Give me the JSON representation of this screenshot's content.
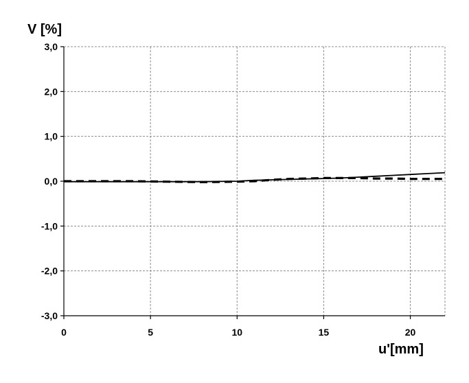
{
  "chart_data": {
    "type": "line",
    "title": "",
    "ylabel": "V [%]",
    "xlabel": "u'[mm]",
    "xlim": [
      0,
      22
    ],
    "ylim": [
      -3.0,
      3.0
    ],
    "x_ticks": [
      0,
      5,
      10,
      15,
      20
    ],
    "x_tick_labels": [
      "0",
      "5",
      "10",
      "15",
      "20"
    ],
    "y_ticks": [
      3.0,
      2.0,
      1.0,
      0.0,
      -1.0,
      -2.0,
      -3.0
    ],
    "y_tick_labels": [
      "3,0",
      "2,0",
      "1,0",
      "0,0",
      "-1,0",
      "-2,0",
      "-3,0"
    ],
    "grid": true,
    "series": [
      {
        "style": "solid",
        "color": "#000000",
        "x": [
          0,
          2,
          4,
          6,
          8,
          10,
          11,
          12,
          13,
          14,
          15,
          16,
          17,
          18,
          19,
          20,
          21,
          22
        ],
        "y": [
          -0.01,
          -0.01,
          -0.01,
          -0.01,
          -0.01,
          0.0,
          0.02,
          0.03,
          0.04,
          0.05,
          0.06,
          0.07,
          0.09,
          0.11,
          0.13,
          0.15,
          0.17,
          0.19
        ]
      },
      {
        "style": "dashed",
        "color": "#000000",
        "x": [
          0,
          2,
          4,
          6,
          8,
          10,
          11,
          12,
          13,
          14,
          15,
          16,
          17,
          18,
          19,
          20,
          21,
          22
        ],
        "y": [
          0.0,
          0.0,
          0.0,
          -0.01,
          -0.02,
          -0.01,
          0.0,
          0.03,
          0.05,
          0.06,
          0.07,
          0.07,
          0.07,
          0.06,
          0.06,
          0.05,
          0.05,
          0.05
        ]
      }
    ]
  }
}
